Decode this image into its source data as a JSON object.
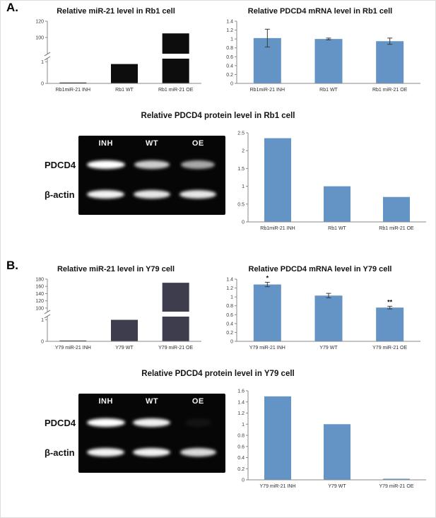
{
  "figure": {
    "background": "#ffffff"
  },
  "panels": [
    {
      "label": "A."
    },
    {
      "label": "B."
    }
  ],
  "chart_data": [
    {
      "id": "rb1-mir21",
      "type": "bar",
      "title": "Relative miR-21 level in Rb1 cell",
      "categories": [
        "Rb1miR-21 INH",
        "Rb1 WT",
        "Rb1 miR-21 OE"
      ],
      "values": [
        0.03,
        0.9,
        105
      ],
      "bar_color": "#0d0d0d",
      "broken_axis": {
        "lower_max": 1.15,
        "lower_ticks": [
          0,
          1
        ],
        "upper_min": 80,
        "upper_max": 120,
        "upper_ticks": [
          100,
          120
        ]
      },
      "grid": false,
      "legend": false
    },
    {
      "id": "rb1-pdcd4-mrna",
      "type": "bar",
      "title": "Relative PDCD4 mRNA level in Rb1 cell",
      "categories": [
        "Rb1miR-21 INH",
        "Rb1 WT",
        "Rb1 miR-21 OE"
      ],
      "values": [
        1.02,
        1.0,
        0.95
      ],
      "errors": [
        0.2,
        0.02,
        0.07
      ],
      "y_ticks": [
        0,
        0.2,
        0.4,
        0.6,
        0.8,
        1,
        1.2,
        1.4
      ],
      "ylim": [
        0,
        1.4
      ],
      "bar_color": "#6494c6",
      "grid": false,
      "legend": false
    },
    {
      "id": "rb1-pdcd4-protein",
      "type": "bar",
      "title": "Relative PDCD4 protein level in Rb1 cell",
      "categories": [
        "Rb1miR-21 INH",
        "Rb1 WT",
        "Rb1 miR-21 OE"
      ],
      "values": [
        2.35,
        1.0,
        0.7
      ],
      "y_ticks": [
        0,
        0.5,
        1,
        1.5,
        2,
        2.5
      ],
      "ylim": [
        0,
        2.5
      ],
      "bar_color": "#6494c6",
      "grid": false,
      "legend": false
    },
    {
      "id": "y79-mir21",
      "type": "bar",
      "title": "Relative miR-21 level in Y79 cell",
      "categories": [
        "Y79 miR-21 INH",
        "Y79 WT",
        "Y79 miR-21 OE"
      ],
      "values": [
        0.04,
        1.0,
        170
      ],
      "bar_color": "#3d3d4d",
      "broken_axis": {
        "lower_max": 1.15,
        "lower_ticks": [
          0,
          1
        ],
        "upper_min": 90,
        "upper_max": 180,
        "upper_ticks": [
          100,
          120,
          140,
          160,
          180
        ]
      },
      "grid": false,
      "legend": false
    },
    {
      "id": "y79-pdcd4-mrna",
      "type": "bar",
      "title": "Relative PDCD4 mRNA level in Y79 cell",
      "categories": [
        "Y79 miR-21 INH",
        "Y79 WT",
        "Y79 miR-21 OE"
      ],
      "values": [
        1.28,
        1.03,
        0.76
      ],
      "errors": [
        0.05,
        0.05,
        0.03
      ],
      "annotations": [
        "*",
        "",
        "**"
      ],
      "y_ticks": [
        0,
        0.2,
        0.4,
        0.6,
        0.8,
        1,
        1.2,
        1.4
      ],
      "ylim": [
        0,
        1.4
      ],
      "bar_color": "#6494c6",
      "grid": false,
      "legend": false
    },
    {
      "id": "y79-pdcd4-protein",
      "type": "bar",
      "title": "Relative PDCD4 protein level in Y79 cell",
      "categories": [
        "Y79 miR-21 INH",
        "Y79 WT",
        "Y79 miR-21 OE"
      ],
      "values": [
        1.5,
        1.0,
        0.02
      ],
      "y_ticks": [
        0,
        0.2,
        0.4,
        0.6,
        0.8,
        1,
        1.2,
        1.4,
        1.6
      ],
      "ylim": [
        0,
        1.6
      ],
      "bar_color": "#6494c6",
      "grid": false,
      "legend": false
    }
  ],
  "blots": [
    {
      "lanes": [
        "INH",
        "WT",
        "OE"
      ],
      "rows": [
        {
          "label": "PDCD4",
          "bands": [
            1,
            0.8,
            0.65
          ]
        },
        {
          "label": "β-actin",
          "bands": [
            0.95,
            0.9,
            0.9
          ]
        }
      ]
    },
    {
      "lanes": [
        "INH",
        "WT",
        "OE"
      ],
      "rows": [
        {
          "label": "PDCD4",
          "bands": [
            1,
            0.95,
            0.05
          ]
        },
        {
          "label": "β-actin",
          "bands": [
            0.95,
            0.95,
            0.85
          ]
        }
      ]
    }
  ]
}
